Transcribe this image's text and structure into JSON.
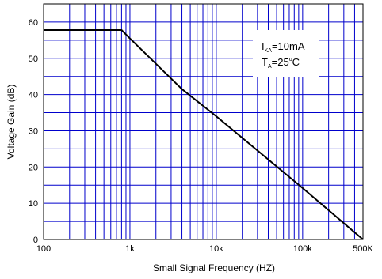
{
  "chart_data": {
    "type": "line",
    "x_scale": "log",
    "xlim": [
      100,
      500000
    ],
    "ylim": [
      0,
      65
    ],
    "xlabel": "Small Signal Frequency (HZ)",
    "ylabel": "Voltage Gain (dB)",
    "x_tick_labels": [
      {
        "value": 100,
        "label": "100"
      },
      {
        "value": 1000,
        "label": "1k"
      },
      {
        "value": 10000,
        "label": "10k"
      },
      {
        "value": 100000,
        "label": "100k"
      },
      {
        "value": 500000,
        "label": "500K"
      }
    ],
    "y_ticks": [
      0,
      10,
      20,
      30,
      40,
      50,
      60
    ],
    "grid": true,
    "grid_color": "#0000cc",
    "series": [
      {
        "color": "#000000",
        "x": [
          100,
          800,
          1000,
          4000,
          10000,
          100000,
          500000
        ],
        "y": [
          57.8,
          57.8,
          55.5,
          41.5,
          34,
          14.2,
          0
        ]
      }
    ],
    "annotation": {
      "line1": {
        "main": "I",
        "sub": "KA",
        "rest": "=10mA"
      },
      "line2": {
        "main": "T",
        "sub": "A",
        "rest": "=25",
        "sup": "o",
        "unit": "C"
      }
    }
  }
}
